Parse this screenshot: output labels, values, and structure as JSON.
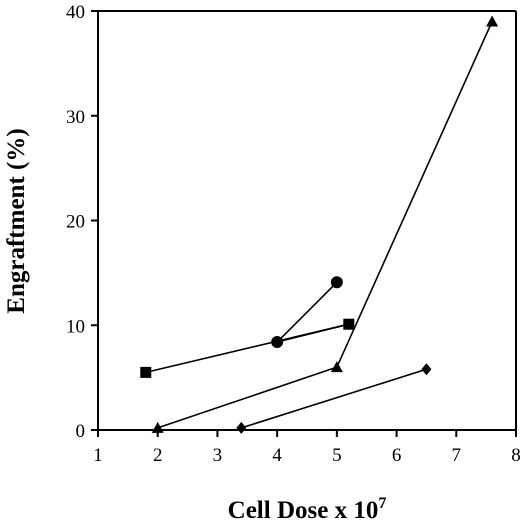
{
  "chart_data": {
    "type": "scatter",
    "title": "",
    "xlabel": "Cell Dose x 10",
    "xlabel_superscript": "7",
    "ylabel": "Engraftment (%)",
    "xlim": [
      1,
      8
    ],
    "ylim": [
      0,
      40
    ],
    "xticks": [
      1,
      2,
      3,
      4,
      5,
      6,
      7,
      8
    ],
    "yticks": [
      0,
      10,
      20,
      30,
      40
    ],
    "grid": false,
    "legend": "none",
    "series": [
      {
        "marker": "square",
        "points": [
          [
            1.8,
            5.5
          ],
          [
            5.2,
            10.1
          ]
        ]
      },
      {
        "marker": "circle",
        "points": [
          [
            4.0,
            8.4
          ],
          [
            5.0,
            14.1
          ]
        ]
      },
      {
        "marker": "triangle",
        "points": [
          [
            2.0,
            0.2
          ],
          [
            5.0,
            6.0
          ],
          [
            7.6,
            39.0
          ]
        ]
      },
      {
        "marker": "diamond",
        "points": [
          [
            3.4,
            0.2
          ],
          [
            6.5,
            5.8
          ]
        ]
      }
    ],
    "connections": [
      [
        [
          4.0,
          8.4
        ],
        [
          5.2,
          10.1
        ]
      ]
    ]
  }
}
